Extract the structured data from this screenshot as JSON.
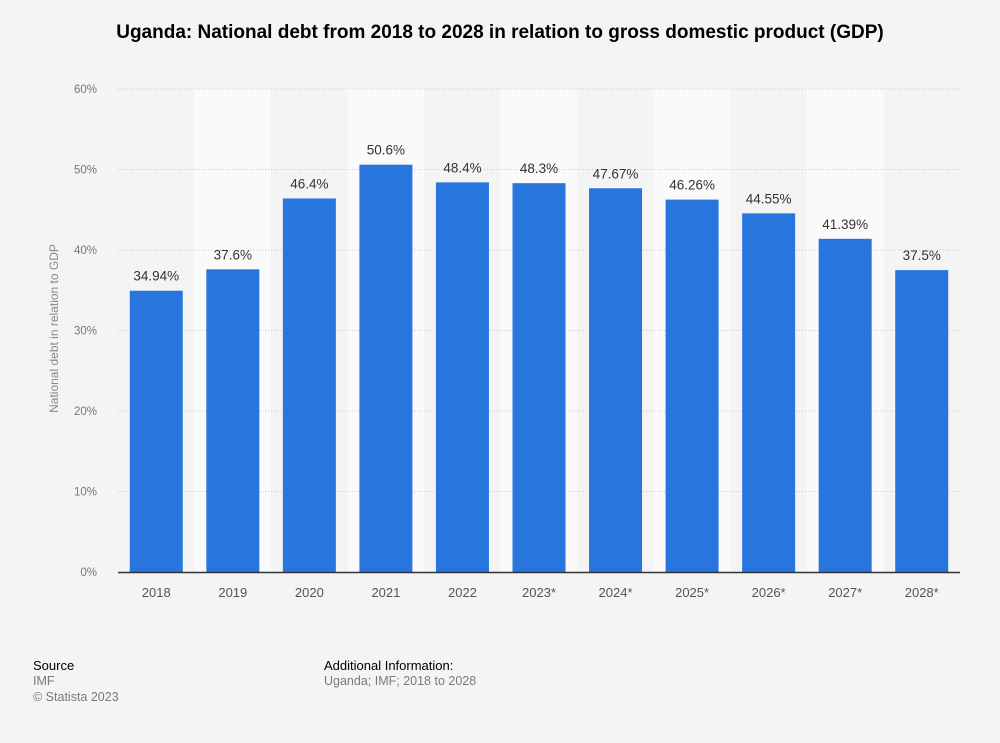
{
  "chart_data": {
    "type": "bar",
    "title": "Uganda: National debt from 2018 to 2028 in relation to gross domestic product (GDP)",
    "xlabel": "",
    "ylabel": "National debt in relation to GDP",
    "categories": [
      "2018",
      "2019",
      "2020",
      "2021",
      "2022",
      "2023*",
      "2024*",
      "2025*",
      "2026*",
      "2027*",
      "2028*"
    ],
    "values": [
      34.94,
      37.6,
      46.4,
      50.6,
      48.4,
      48.3,
      47.67,
      46.26,
      44.55,
      41.39,
      37.5
    ],
    "data_labels": [
      "34.94%",
      "37.6%",
      "46.4%",
      "50.6%",
      "48.4%",
      "48.3%",
      "47.67%",
      "46.26%",
      "44.55%",
      "41.39%",
      "37.5%"
    ],
    "ylim": [
      0,
      60
    ],
    "yticks": [
      0,
      10,
      20,
      30,
      40,
      50,
      60
    ],
    "ytick_labels": [
      "0%",
      "10%",
      "20%",
      "30%",
      "40%",
      "50%",
      "60%"
    ],
    "grid": true,
    "legend": "none",
    "bar_color": "#2875dd"
  },
  "footer": {
    "source_heading": "Source",
    "source_value": "IMF",
    "copyright": "© Statista 2023",
    "info_heading": "Additional Information:",
    "info_value": "Uganda; IMF; 2018 to 2028"
  }
}
